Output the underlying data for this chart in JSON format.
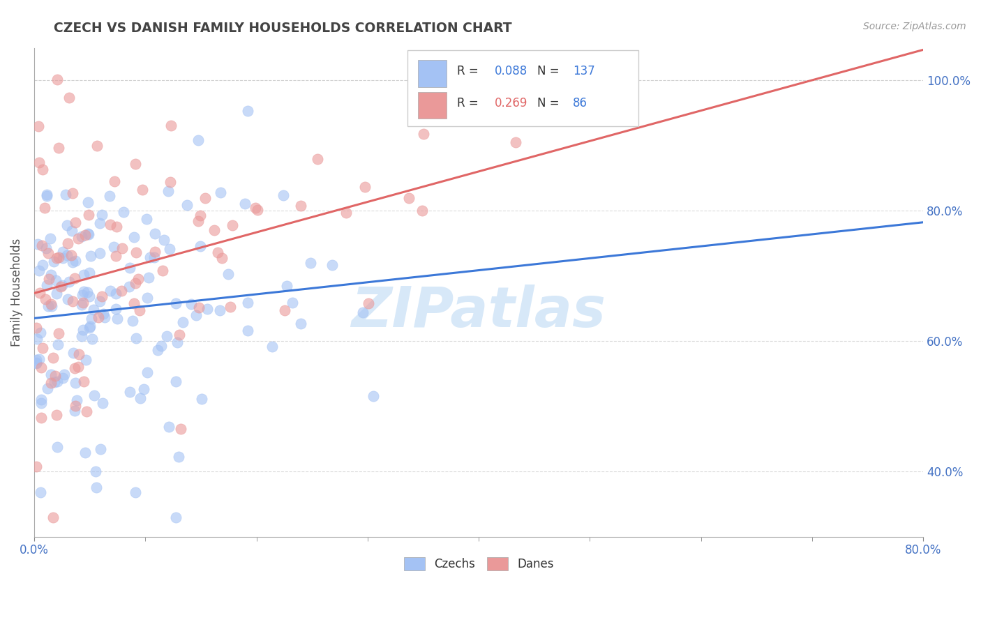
{
  "title": "CZECH VS DANISH FAMILY HOUSEHOLDS CORRELATION CHART",
  "source_text": "Source: ZipAtlas.com",
  "ylabel": "Family Households",
  "xmin": 0.0,
  "xmax": 0.8,
  "ymin": 0.3,
  "ymax": 1.05,
  "czech_R": 0.088,
  "czech_N": 137,
  "danish_R": 0.269,
  "danish_N": 86,
  "czech_color": "#a4c2f4",
  "danish_color": "#ea9999",
  "czech_line_color": "#3c78d8",
  "danish_line_color": "#e06666",
  "right_axis_color": "#4472c4",
  "watermark_color": "#d0e4f7",
  "grid_color": "#cccccc",
  "title_color": "#434343",
  "source_color": "#999999"
}
